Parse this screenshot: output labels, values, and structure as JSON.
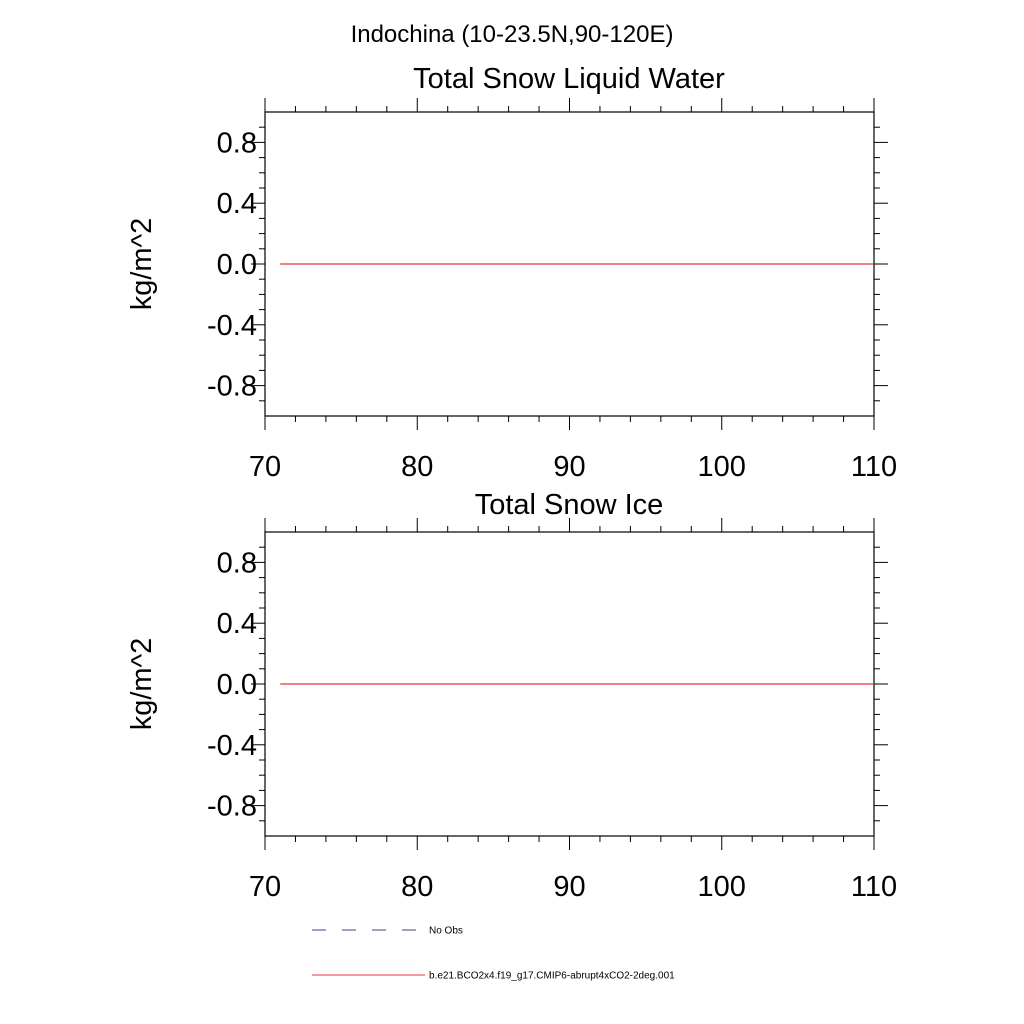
{
  "figure": {
    "title": "Indochina (10-23.5N,90-120E)"
  },
  "chart_data": [
    {
      "type": "line",
      "title": "Total Snow Liquid Water",
      "xlabel": "",
      "ylabel": "kg/m^2",
      "xlim": [
        70,
        110
      ],
      "ylim": [
        -1.0,
        1.0
      ],
      "x_ticks": [
        70,
        80,
        90,
        100,
        110
      ],
      "x_tick_labels": [
        "70",
        "80",
        "90",
        "100",
        "110"
      ],
      "y_ticks": [
        -0.8,
        -0.4,
        0.0,
        0.4,
        0.8
      ],
      "y_tick_labels": [
        "-0.8",
        "-0.4",
        "0.0",
        "0.4",
        "0.8"
      ],
      "grid": false,
      "series": [
        {
          "name": "b.e21.BCO2x4.f19_g17.CMIP6-abrupt4xCO2-2deg.001",
          "color": "#e8333b",
          "x": [
            71,
            110
          ],
          "y": [
            0,
            0
          ]
        }
      ]
    },
    {
      "type": "line",
      "title": "Total Snow Ice",
      "xlabel": "",
      "ylabel": "kg/m^2",
      "xlim": [
        70,
        110
      ],
      "ylim": [
        -1.0,
        1.0
      ],
      "x_ticks": [
        70,
        80,
        90,
        100,
        110
      ],
      "x_tick_labels": [
        "70",
        "80",
        "90",
        "100",
        "110"
      ],
      "y_ticks": [
        -0.8,
        -0.4,
        0.0,
        0.4,
        0.8
      ],
      "y_tick_labels": [
        "-0.8",
        "-0.4",
        "0.0",
        "0.4",
        "0.8"
      ],
      "grid": false,
      "series": [
        {
          "name": "b.e21.BCO2x4.f19_g17.CMIP6-abrupt4xCO2-2deg.001",
          "color": "#e8333b",
          "x": [
            71,
            110
          ],
          "y": [
            0,
            0
          ]
        }
      ]
    }
  ],
  "legend": {
    "placement": "bottom",
    "entries": [
      {
        "label": "No Obs",
        "style": "dashed",
        "color": "#3b3f8f"
      },
      {
        "label": "b.e21.BCO2x4.f19_g17.CMIP6-abrupt4xCO2-2deg.001",
        "style": "solid",
        "color": "#e8333b"
      }
    ]
  }
}
